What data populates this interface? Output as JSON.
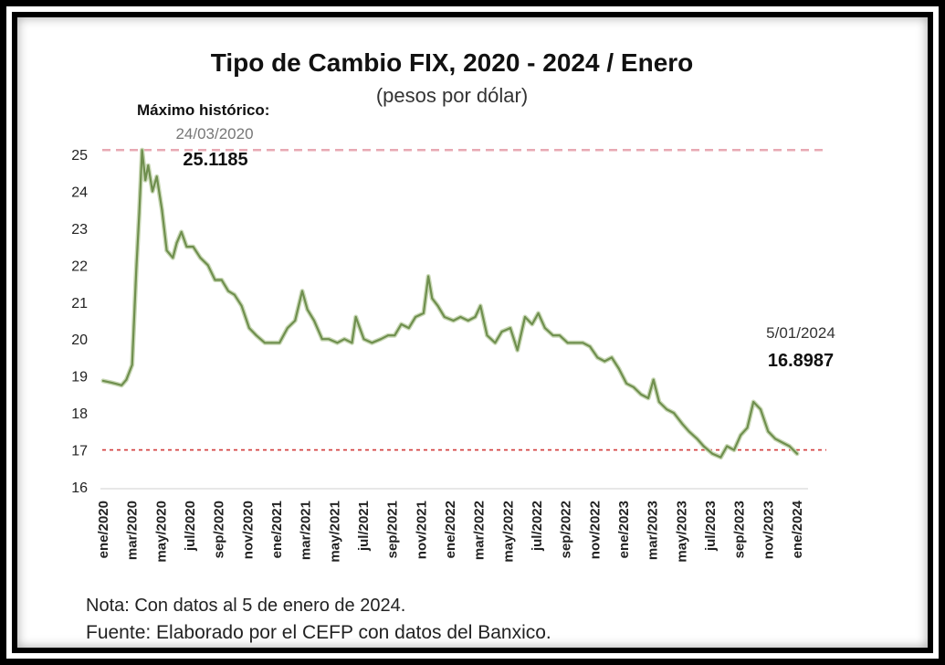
{
  "chart_data": {
    "type": "line",
    "title": "Tipo de Cambio FIX, 2020 - 2024 / Enero",
    "subtitle": "(pesos por dólar)",
    "xlabel": "",
    "ylabel": "",
    "ylim": [
      16,
      25.3
    ],
    "yticks": [
      "16",
      "17",
      "18",
      "19",
      "20",
      "21",
      "22",
      "23",
      "24",
      "25"
    ],
    "x_tick_labels": [
      "ene/2020",
      "mar/2020",
      "may/2020",
      "jul/2020",
      "sep/2020",
      "nov/2020",
      "ene/2021",
      "mar/2021",
      "may/2021",
      "jul/2021",
      "sep/2021",
      "nov/2021",
      "ene/2022",
      "mar/2022",
      "may/2022",
      "jul/2022",
      "sep/2022",
      "nov/2022",
      "ene/2023",
      "mar/2023",
      "may/2023",
      "jul/2023",
      "sep/2023",
      "nov/2023",
      "ene/2024"
    ],
    "grid": false,
    "series": [
      {
        "color": "#6f8f4e",
        "x": [
          "2020-01-02",
          "2020-01-20",
          "2020-02-10",
          "2020-02-20",
          "2020-03-03",
          "2020-03-12",
          "2020-03-18",
          "2020-03-24",
          "2020-03-31",
          "2020-04-06",
          "2020-04-15",
          "2020-04-24",
          "2020-05-05",
          "2020-05-15",
          "2020-05-28",
          "2020-06-05",
          "2020-06-15",
          "2020-06-26",
          "2020-07-10",
          "2020-07-25",
          "2020-08-10",
          "2020-08-25",
          "2020-09-08",
          "2020-09-22",
          "2020-10-05",
          "2020-10-20",
          "2020-11-05",
          "2020-11-20",
          "2020-12-08",
          "2020-12-22",
          "2021-01-08",
          "2021-01-25",
          "2021-02-10",
          "2021-02-25",
          "2021-03-08",
          "2021-03-22",
          "2021-04-08",
          "2021-04-22",
          "2021-05-10",
          "2021-05-25",
          "2021-06-10",
          "2021-06-18",
          "2021-07-05",
          "2021-07-22",
          "2021-08-10",
          "2021-08-25",
          "2021-09-08",
          "2021-09-22",
          "2021-10-08",
          "2021-10-22",
          "2021-11-08",
          "2021-11-18",
          "2021-11-26",
          "2021-12-08",
          "2021-12-22",
          "2022-01-10",
          "2022-01-25",
          "2022-02-10",
          "2022-02-25",
          "2022-03-08",
          "2022-03-22",
          "2022-04-08",
          "2022-04-22",
          "2022-05-10",
          "2022-05-25",
          "2022-06-10",
          "2022-06-25",
          "2022-07-08",
          "2022-07-22",
          "2022-08-08",
          "2022-08-22",
          "2022-09-08",
          "2022-09-22",
          "2022-10-10",
          "2022-10-25",
          "2022-11-10",
          "2022-11-25",
          "2022-12-10",
          "2022-12-25",
          "2023-01-10",
          "2023-01-25",
          "2023-02-10",
          "2023-02-25",
          "2023-03-08",
          "2023-03-20",
          "2023-04-05",
          "2023-04-20",
          "2023-05-08",
          "2023-05-22",
          "2023-06-08",
          "2023-06-22",
          "2023-07-10",
          "2023-07-28",
          "2023-08-10",
          "2023-08-25",
          "2023-09-08",
          "2023-09-22",
          "2023-10-05",
          "2023-10-20",
          "2023-11-05",
          "2023-11-20",
          "2023-12-05",
          "2023-12-20",
          "2024-01-05"
        ],
        "y": [
          18.87,
          18.82,
          18.75,
          18.9,
          19.3,
          21.9,
          23.4,
          25.1185,
          24.3,
          24.7,
          24.0,
          24.4,
          23.5,
          22.4,
          22.2,
          22.6,
          22.9,
          22.5,
          22.5,
          22.2,
          22.0,
          21.6,
          21.6,
          21.3,
          21.2,
          20.9,
          20.3,
          20.1,
          19.9,
          19.9,
          19.9,
          20.3,
          20.5,
          21.3,
          20.8,
          20.5,
          20.0,
          20.0,
          19.9,
          20.0,
          19.9,
          20.6,
          20.0,
          19.9,
          20.0,
          20.1,
          20.1,
          20.4,
          20.3,
          20.6,
          20.7,
          21.7,
          21.1,
          20.9,
          20.6,
          20.5,
          20.6,
          20.5,
          20.6,
          20.9,
          20.1,
          19.9,
          20.2,
          20.3,
          19.7,
          20.6,
          20.4,
          20.7,
          20.3,
          20.1,
          20.1,
          19.9,
          19.9,
          19.9,
          19.8,
          19.5,
          19.4,
          19.5,
          19.2,
          18.8,
          18.7,
          18.5,
          18.4,
          18.9,
          18.3,
          18.1,
          18.0,
          17.7,
          17.5,
          17.3,
          17.1,
          16.9,
          16.8,
          17.1,
          17.0,
          17.4,
          17.6,
          18.3,
          18.1,
          17.5,
          17.3,
          17.2,
          17.1,
          16.8987
        ]
      }
    ],
    "reference_lines": [
      {
        "y": 25.1185,
        "color": "#e8a9b3"
      },
      {
        "y": 17.0,
        "color": "#d23a3a"
      }
    ],
    "annotations": {
      "max_title": "Máximo histórico:",
      "max_date": "24/03/2020",
      "max_value": "25.1185",
      "last_date": "5/01/2024",
      "last_value": "16.8987"
    }
  },
  "notes": {
    "nota": "Nota: Con datos al 5 de enero de 2024.",
    "fuente": "Fuente: Elaborado por el CEFP con datos del Banxico."
  }
}
